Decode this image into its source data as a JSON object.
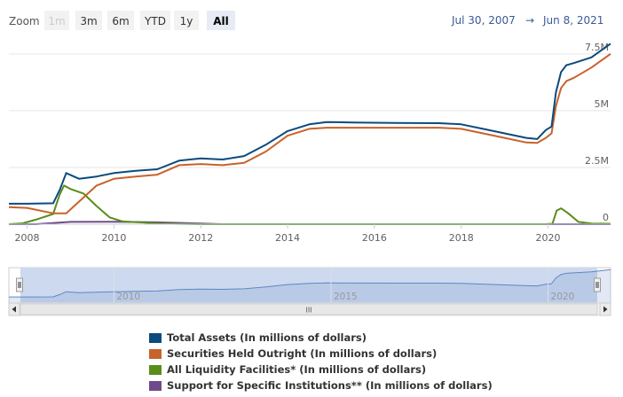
{
  "zoom": {
    "label": "Zoom",
    "buttons": [
      "1m",
      "3m",
      "6m",
      "YTD",
      "1y",
      "All"
    ],
    "disabled": [
      0
    ],
    "selected": 5
  },
  "range": {
    "from": "Jul 30, 2007",
    "separator": "→",
    "to": "Jun 8, 2021"
  },
  "colors": {
    "total_assets": "#0b4a7d",
    "securities": "#c8622b",
    "liquidity": "#5a8c1a",
    "support": "#6f4a8a",
    "navigator_fill": "#cdd9ef",
    "navigator_line": "#5f86c2"
  },
  "navigator": {
    "labels": [
      "2010",
      "2015",
      "2020"
    ],
    "scroll_grip": "III"
  },
  "chart_data": {
    "type": "line",
    "title": "",
    "xlabel": "",
    "ylabel": "",
    "xlim": [
      2007.58,
      2021.44
    ],
    "ylim": [
      0,
      8000000
    ],
    "x_ticks": [
      2008,
      2010,
      2012,
      2014,
      2016,
      2018,
      2020
    ],
    "y_ticks": [
      {
        "value": 0,
        "label": "0"
      },
      {
        "value": 2500000,
        "label": "2.5M"
      },
      {
        "value": 5000000,
        "label": "5M"
      },
      {
        "value": 7500000,
        "label": "7.5M"
      }
    ],
    "grid": true,
    "legend_position": "bottom",
    "series": [
      {
        "name": "Total Assets (In millions of dollars)",
        "x": [
          2007.58,
          2008.0,
          2008.6,
          2008.75,
          2008.9,
          2009.2,
          2009.6,
          2010.0,
          2010.5,
          2011.0,
          2011.5,
          2012.0,
          2012.5,
          2013.0,
          2013.5,
          2014.0,
          2014.5,
          2014.9,
          2015.5,
          2016.5,
          2017.5,
          2018.0,
          2018.5,
          2019.0,
          2019.5,
          2019.75,
          2019.95,
          2020.08,
          2020.18,
          2020.3,
          2020.42,
          2020.6,
          2021.0,
          2021.44
        ],
        "y": [
          900000,
          900000,
          920000,
          1500000,
          2250000,
          2000000,
          2100000,
          2250000,
          2350000,
          2420000,
          2800000,
          2900000,
          2850000,
          3000000,
          3500000,
          4100000,
          4400000,
          4500000,
          4480000,
          4460000,
          4450000,
          4400000,
          4200000,
          4000000,
          3800000,
          3750000,
          4150000,
          4300000,
          5800000,
          6700000,
          7000000,
          7100000,
          7350000,
          7950000
        ]
      },
      {
        "name": "Securities Held Outright (In millions of dollars)",
        "x": [
          2007.58,
          2008.0,
          2008.6,
          2008.9,
          2009.2,
          2009.6,
          2010.0,
          2010.5,
          2011.0,
          2011.5,
          2012.0,
          2012.5,
          2013.0,
          2013.5,
          2014.0,
          2014.5,
          2014.9,
          2015.5,
          2016.5,
          2017.5,
          2018.0,
          2018.5,
          2019.0,
          2019.5,
          2019.75,
          2019.95,
          2020.08,
          2020.18,
          2020.3,
          2020.42,
          2020.6,
          2021.0,
          2021.44
        ],
        "y": [
          750000,
          720000,
          480000,
          480000,
          1000000,
          1700000,
          2000000,
          2100000,
          2180000,
          2600000,
          2650000,
          2600000,
          2700000,
          3200000,
          3900000,
          4200000,
          4250000,
          4250000,
          4250000,
          4250000,
          4200000,
          4000000,
          3800000,
          3600000,
          3580000,
          3800000,
          4000000,
          5200000,
          6000000,
          6300000,
          6450000,
          6900000,
          7500000
        ]
      },
      {
        "name": "All Liquidity Facilities* (In millions of dollars)",
        "x": [
          2007.58,
          2007.9,
          2008.2,
          2008.6,
          2008.75,
          2008.85,
          2009.0,
          2009.3,
          2009.6,
          2009.9,
          2010.2,
          2010.6,
          2011.0,
          2012.0,
          2019.9,
          2020.1,
          2020.2,
          2020.3,
          2020.45,
          2020.7,
          2021.0,
          2021.44
        ],
        "y": [
          0,
          40000,
          200000,
          450000,
          1300000,
          1700000,
          1550000,
          1350000,
          800000,
          300000,
          120000,
          80000,
          30000,
          0,
          0,
          20000,
          600000,
          700000,
          500000,
          100000,
          30000,
          20000
        ]
      },
      {
        "name": "Support for Specific Institutions** (In millions of dollars)",
        "x": [
          2007.58,
          2008.2,
          2008.5,
          2009.0,
          2010.0,
          2011.0,
          2012.0,
          2012.5,
          2021.44
        ],
        "y": [
          0,
          0,
          40000,
          100000,
          110000,
          80000,
          30000,
          0,
          0
        ]
      }
    ]
  }
}
